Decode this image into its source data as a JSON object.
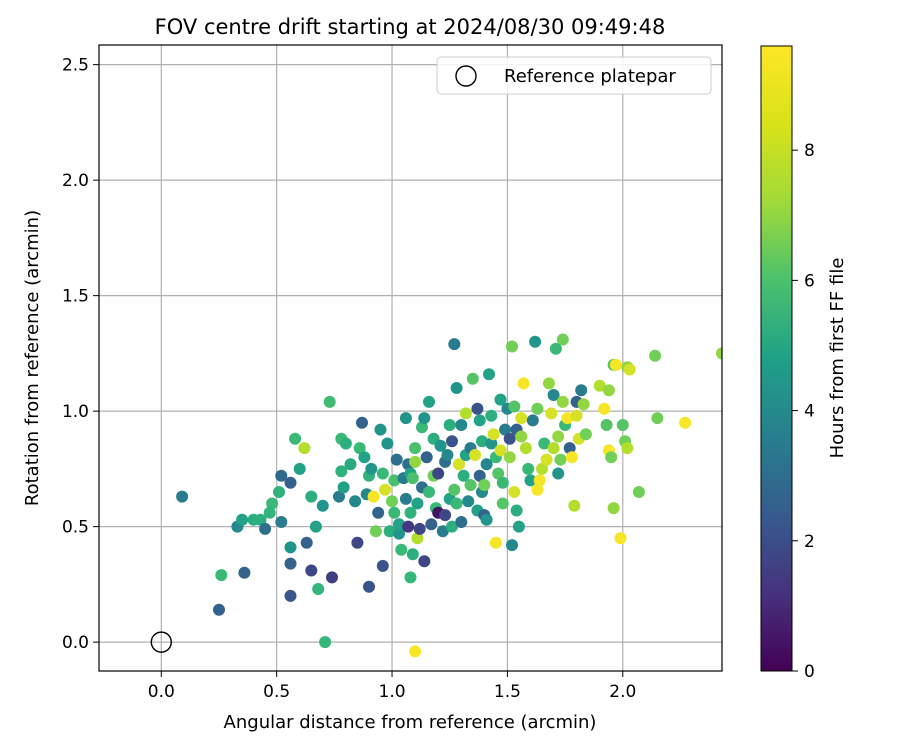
{
  "chart_data": {
    "type": "scatter",
    "title": "FOV centre drift starting at 2024/08/30 09:49:48",
    "xlabel": "Angular distance from reference (arcmin)",
    "ylabel": "Rotation from reference (arcmin)",
    "xlim": [
      -0.27,
      2.43
    ],
    "ylim": [
      -0.125,
      2.585
    ],
    "xticks": [
      0.0,
      0.5,
      1.0,
      1.5,
      2.0
    ],
    "yticks": [
      0.0,
      0.5,
      1.0,
      1.5,
      2.0,
      2.5
    ],
    "grid": true,
    "legend": {
      "placement": "top-right",
      "entries": [
        "Reference platepar"
      ]
    },
    "reference_point": {
      "name": "Reference platepar",
      "x": 0.0,
      "y": 0.0,
      "marker": "open-circle"
    },
    "colorbar": {
      "label": "Hours from first FF file",
      "colormap": "viridis",
      "range": [
        0,
        9.6
      ],
      "ticks": [
        0,
        2,
        4,
        6,
        8
      ]
    },
    "points": [
      [
        0.09,
        0.63,
        4.0
      ],
      [
        0.25,
        0.14,
        3.0
      ],
      [
        0.26,
        0.29,
        6.5
      ],
      [
        0.33,
        0.5,
        4.5
      ],
      [
        0.35,
        0.53,
        5.5
      ],
      [
        0.36,
        0.3,
        3.0
      ],
      [
        0.4,
        0.53,
        6.0
      ],
      [
        0.43,
        0.53,
        6.0
      ],
      [
        0.45,
        0.49,
        3.5
      ],
      [
        0.48,
        0.6,
        6.5
      ],
      [
        0.47,
        0.56,
        6.3
      ],
      [
        0.51,
        0.65,
        6.2
      ],
      [
        0.52,
        0.72,
        3.2
      ],
      [
        0.52,
        0.52,
        4.0
      ],
      [
        0.56,
        0.41,
        5.0
      ],
      [
        0.56,
        0.69,
        3.0
      ],
      [
        0.58,
        0.88,
        6.5
      ],
      [
        0.6,
        0.75,
        5.5
      ],
      [
        0.62,
        0.84,
        8.5
      ],
      [
        0.56,
        0.34,
        3.0
      ],
      [
        0.56,
        0.2,
        2.5
      ],
      [
        0.63,
        0.43,
        3.0
      ],
      [
        0.65,
        0.63,
        6.0
      ],
      [
        0.65,
        0.31,
        2.0
      ],
      [
        0.67,
        0.5,
        5.5
      ],
      [
        0.68,
        0.23,
        6.3
      ],
      [
        0.7,
        0.59,
        5.0
      ],
      [
        0.71,
        0.0,
        6.4
      ],
      [
        0.73,
        1.04,
        6.6
      ],
      [
        0.74,
        0.28,
        1.8
      ],
      [
        0.77,
        0.63,
        4.0
      ],
      [
        0.78,
        0.74,
        6.2
      ],
      [
        0.78,
        0.88,
        6.5
      ],
      [
        0.79,
        0.67,
        5.4
      ],
      [
        0.8,
        0.86,
        6.0
      ],
      [
        0.82,
        0.77,
        5.8
      ],
      [
        0.84,
        0.61,
        4.5
      ],
      [
        0.85,
        0.43,
        2.0
      ],
      [
        0.86,
        0.84,
        6.5
      ],
      [
        0.87,
        0.95,
        3.0
      ],
      [
        0.88,
        0.8,
        5.5
      ],
      [
        0.89,
        0.64,
        4.5
      ],
      [
        0.9,
        0.72,
        6.2
      ],
      [
        0.9,
        0.24,
        2.5
      ],
      [
        0.91,
        0.75,
        5.0
      ],
      [
        0.92,
        0.63,
        9.5
      ],
      [
        0.93,
        0.48,
        7.5
      ],
      [
        0.94,
        0.56,
        3.0
      ],
      [
        0.95,
        0.92,
        5.0
      ],
      [
        0.96,
        0.73,
        6.5
      ],
      [
        0.97,
        0.66,
        9.0
      ],
      [
        0.96,
        0.33,
        2.5
      ],
      [
        0.98,
        0.86,
        5.0
      ],
      [
        0.99,
        0.48,
        6.0
      ],
      [
        1.0,
        0.61,
        7.5
      ],
      [
        1.01,
        0.7,
        6.8
      ],
      [
        1.01,
        0.56,
        6.5
      ],
      [
        1.02,
        0.79,
        3.5
      ],
      [
        1.03,
        0.47,
        5.0
      ],
      [
        1.03,
        0.51,
        5.5
      ],
      [
        1.04,
        0.4,
        6.5
      ],
      [
        1.05,
        0.71,
        4.0
      ],
      [
        1.06,
        0.62,
        4.0
      ],
      [
        1.06,
        0.97,
        5.0
      ],
      [
        1.07,
        0.5,
        1.5
      ],
      [
        1.07,
        0.77,
        3.5
      ],
      [
        1.08,
        0.73,
        5.5
      ],
      [
        1.08,
        0.56,
        6.2
      ],
      [
        1.08,
        0.28,
        6.4
      ],
      [
        1.09,
        0.38,
        6.0
      ],
      [
        1.09,
        0.71,
        6.8
      ],
      [
        1.1,
        0.78,
        8.0
      ],
      [
        1.1,
        0.84,
        6.8
      ],
      [
        1.11,
        0.6,
        5.5
      ],
      [
        1.11,
        0.45,
        8.5
      ],
      [
        1.12,
        0.49,
        2.0
      ],
      [
        1.13,
        0.67,
        3.5
      ],
      [
        1.13,
        0.93,
        6.5
      ],
      [
        1.14,
        0.35,
        2.0
      ],
      [
        1.14,
        0.97,
        5.0
      ],
      [
        1.15,
        0.8,
        3.0
      ],
      [
        1.16,
        0.65,
        6.5
      ],
      [
        1.16,
        1.04,
        5.5
      ],
      [
        1.17,
        0.51,
        3.0
      ],
      [
        1.18,
        0.72,
        7.5
      ],
      [
        1.18,
        0.88,
        6.0
      ],
      [
        1.19,
        0.58,
        6.5
      ],
      [
        1.2,
        0.56,
        0.5
      ],
      [
        1.2,
        0.73,
        2.0
      ],
      [
        1.21,
        0.85,
        5.0
      ],
      [
        1.22,
        0.48,
        4.0
      ],
      [
        1.23,
        0.55,
        2.0
      ],
      [
        1.23,
        0.78,
        3.5
      ],
      [
        1.24,
        0.81,
        4.5
      ],
      [
        1.25,
        0.94,
        6.0
      ],
      [
        1.25,
        0.62,
        5.5
      ],
      [
        1.26,
        0.5,
        6.0
      ],
      [
        1.26,
        0.87,
        2.5
      ],
      [
        1.27,
        0.66,
        7.0
      ],
      [
        1.27,
        1.29,
        4.0
      ],
      [
        1.28,
        1.1,
        5.0
      ],
      [
        1.28,
        0.6,
        6.5
      ],
      [
        1.29,
        0.77,
        9.0
      ],
      [
        1.3,
        0.52,
        3.5
      ],
      [
        1.3,
        0.94,
        4.5
      ],
      [
        1.31,
        0.72,
        6.0
      ],
      [
        1.32,
        0.81,
        5.5
      ],
      [
        1.32,
        0.99,
        8.5
      ],
      [
        1.33,
        0.61,
        4.5
      ],
      [
        1.34,
        0.68,
        7.0
      ],
      [
        1.34,
        0.84,
        4.0
      ],
      [
        1.35,
        1.14,
        7.0
      ],
      [
        1.36,
        0.81,
        9.0
      ],
      [
        1.37,
        1.01,
        2.5
      ],
      [
        1.37,
        0.57,
        5.5
      ],
      [
        1.38,
        0.96,
        5.5
      ],
      [
        1.38,
        0.72,
        3.0
      ],
      [
        1.39,
        0.87,
        6.0
      ],
      [
        1.39,
        0.65,
        4.5
      ],
      [
        1.4,
        0.55,
        3.0
      ],
      [
        1.4,
        0.68,
        7.5
      ],
      [
        1.41,
        0.53,
        5.0
      ],
      [
        1.41,
        0.77,
        4.5
      ],
      [
        1.42,
        1.16,
        5.5
      ],
      [
        1.43,
        0.98,
        6.0
      ],
      [
        1.43,
        0.86,
        5.0
      ],
      [
        1.44,
        0.9,
        9.0
      ],
      [
        1.45,
        0.43,
        9.5
      ],
      [
        1.45,
        0.8,
        6.5
      ],
      [
        1.46,
        0.73,
        7.0
      ],
      [
        1.47,
        1.05,
        5.5
      ],
      [
        1.47,
        0.83,
        9.0
      ],
      [
        1.48,
        0.6,
        7.0
      ],
      [
        1.48,
        0.69,
        6.5
      ],
      [
        1.49,
        0.92,
        4.0
      ],
      [
        1.5,
        1.01,
        4.5
      ],
      [
        1.51,
        0.88,
        2.5
      ],
      [
        1.51,
        0.8,
        8.0
      ],
      [
        1.52,
        0.42,
        4.5
      ],
      [
        1.52,
        1.28,
        7.5
      ],
      [
        1.53,
        1.02,
        7.0
      ],
      [
        1.53,
        0.65,
        9.0
      ],
      [
        1.54,
        0.92,
        3.0
      ],
      [
        1.54,
        0.57,
        6.0
      ],
      [
        1.55,
        0.5,
        5.5
      ],
      [
        1.56,
        0.89,
        8.0
      ],
      [
        1.56,
        0.97,
        9.0
      ],
      [
        1.57,
        1.12,
        9.5
      ],
      [
        1.58,
        0.84,
        8.5
      ],
      [
        1.59,
        0.75,
        6.5
      ],
      [
        1.6,
        0.7,
        5.5
      ],
      [
        1.61,
        0.96,
        4.0
      ],
      [
        1.62,
        1.3,
        5.0
      ],
      [
        1.63,
        1.01,
        7.5
      ],
      [
        1.63,
        0.66,
        9.5
      ],
      [
        1.64,
        0.7,
        9.5
      ],
      [
        1.65,
        0.75,
        8.5
      ],
      [
        1.66,
        0.86,
        6.5
      ],
      [
        1.67,
        0.79,
        9.0
      ],
      [
        1.68,
        1.12,
        8.0
      ],
      [
        1.69,
        0.99,
        9.0
      ],
      [
        1.7,
        0.84,
        8.5
      ],
      [
        1.7,
        1.07,
        4.5
      ],
      [
        1.71,
        1.27,
        6.5
      ],
      [
        1.72,
        0.73,
        5.0
      ],
      [
        1.72,
        0.89,
        8.0
      ],
      [
        1.73,
        0.79,
        7.5
      ],
      [
        1.74,
        1.04,
        8.0
      ],
      [
        1.74,
        1.31,
        7.5
      ],
      [
        1.75,
        0.94,
        6.5
      ],
      [
        1.76,
        0.97,
        9.5
      ],
      [
        1.77,
        0.84,
        3.0
      ],
      [
        1.78,
        0.8,
        9.5
      ],
      [
        1.79,
        0.59,
        8.5
      ],
      [
        1.8,
        1.04,
        3.0
      ],
      [
        1.8,
        0.98,
        9.0
      ],
      [
        1.81,
        0.88,
        9.0
      ],
      [
        1.82,
        1.09,
        4.0
      ],
      [
        1.83,
        1.03,
        8.0
      ],
      [
        1.84,
        0.9,
        7.5
      ],
      [
        1.9,
        1.11,
        8.5
      ],
      [
        1.92,
        1.01,
        9.5
      ],
      [
        1.93,
        0.94,
        7.0
      ],
      [
        1.94,
        0.83,
        9.5
      ],
      [
        1.94,
        1.09,
        8.0
      ],
      [
        1.95,
        0.8,
        7.5
      ],
      [
        1.96,
        0.58,
        8.0
      ],
      [
        1.96,
        1.2,
        7.0
      ],
      [
        1.97,
        1.2,
        9.5
      ],
      [
        1.99,
        0.45,
        9.5
      ],
      [
        2.0,
        0.94,
        7.0
      ],
      [
        2.01,
        0.87,
        7.5
      ],
      [
        2.02,
        0.84,
        8.5
      ],
      [
        2.02,
        1.19,
        8.0
      ],
      [
        2.03,
        1.18,
        9.0
      ],
      [
        2.07,
        0.65,
        7.5
      ],
      [
        2.14,
        1.24,
        7.5
      ],
      [
        2.15,
        0.97,
        7.5
      ],
      [
        2.27,
        0.95,
        9.5
      ],
      [
        1.1,
        -0.04,
        9.5
      ],
      [
        2.43,
        1.25,
        8.0
      ]
    ]
  }
}
